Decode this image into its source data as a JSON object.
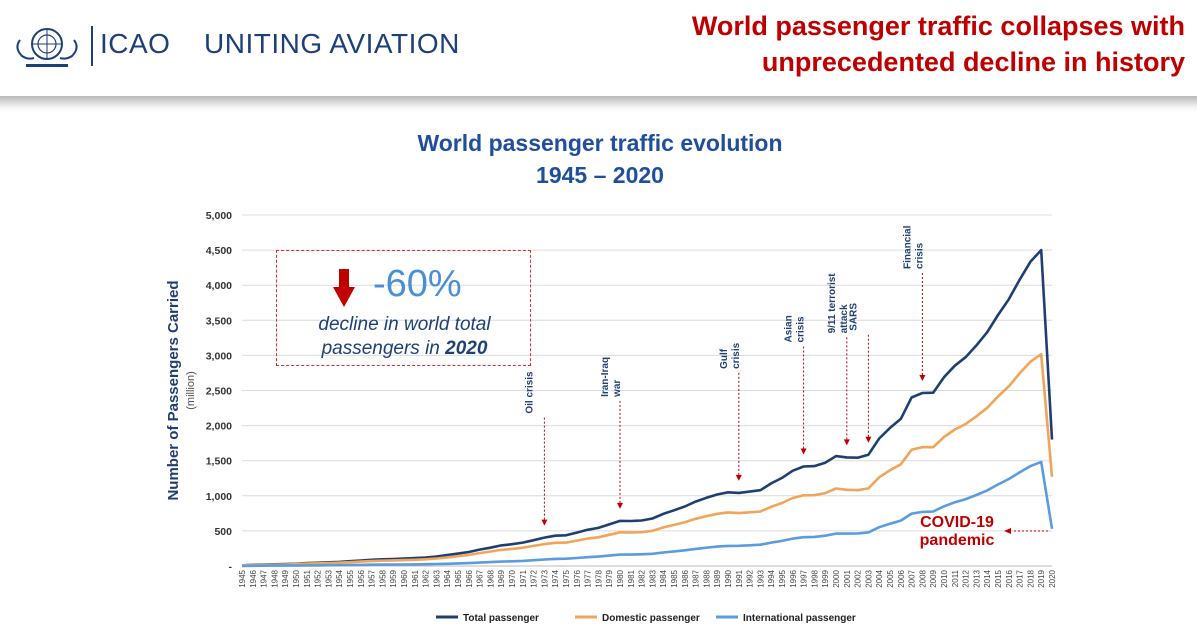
{
  "header": {
    "brand_name": "ICAO",
    "brand_tagline": "UNITING AVIATION",
    "headline_line1": "World passenger traffic collapses with",
    "headline_line2": "unprecedented decline in history"
  },
  "icons": {
    "logo": "icao-emblem-logo",
    "callout": "down-arrow-icon",
    "covid": "left-arrow-icon",
    "events": "down-arrow-icon"
  },
  "callout": {
    "percent": "-60%",
    "text_line1": "decline in world total",
    "text_line2": "passengers in ",
    "text_year": "2020"
  },
  "covid": {
    "line1": "COVID-19",
    "line2": "pandemic"
  },
  "colors": {
    "total": "#1f3f73",
    "domestic": "#f0a55a",
    "international": "#5b9be0",
    "accent": "#c00000",
    "title": "#1f4e9c"
  },
  "chart_data": {
    "type": "line",
    "title": "World passenger traffic evolution",
    "subtitle": "1945 – 2020",
    "ylabel": "Number of Passengers Carried",
    "ylabel_unit": "(million)",
    "xlabel": "",
    "ylim": [
      0,
      5000
    ],
    "yticks": [
      0,
      500,
      1000,
      1500,
      2000,
      2500,
      3000,
      3500,
      4000,
      4500,
      5000
    ],
    "ytick_labels": [
      "-",
      "500",
      "1,000",
      "1,500",
      "2,000",
      "2,500",
      "3,000",
      "3,500",
      "4,000",
      "4,500",
      "5,000"
    ],
    "x": [
      1945,
      1946,
      1947,
      1948,
      1949,
      1950,
      1951,
      1952,
      1953,
      1954,
      1955,
      1956,
      1957,
      1958,
      1959,
      1960,
      1961,
      1962,
      1963,
      1964,
      1965,
      1966,
      1967,
      1968,
      1969,
      1970,
      1971,
      1972,
      1973,
      1974,
      1975,
      1976,
      1977,
      1978,
      1979,
      1980,
      1981,
      1982,
      1983,
      1984,
      1985,
      1986,
      1987,
      1988,
      1989,
      1990,
      1991,
      1992,
      1993,
      1994,
      1995,
      1996,
      1997,
      1998,
      1999,
      2000,
      2001,
      2002,
      2003,
      2004,
      2005,
      2006,
      2007,
      2008,
      2009,
      2010,
      2011,
      2012,
      2013,
      2014,
      2015,
      2016,
      2017,
      2018,
      2019,
      2020
    ],
    "grid": "horizontal",
    "legend_position": "bottom",
    "series": [
      {
        "name": "Total passenger",
        "values": [
          9,
          18,
          21,
          24,
          27,
          31,
          42,
          46,
          52,
          59,
          68,
          78,
          88,
          96,
          100,
          106,
          112,
          121,
          135,
          155,
          177,
          200,
          233,
          261,
          293,
          311,
          333,
          368,
          404,
          432,
          437,
          476,
          516,
          543,
          592,
          642,
          641,
          648,
          676,
          742,
          793,
          848,
          917,
          971,
          1019,
          1050,
          1041,
          1060,
          1080,
          1176,
          1255,
          1358,
          1417,
          1423,
          1471,
          1566,
          1547,
          1543,
          1585,
          1816,
          1967,
          2096,
          2402,
          2465,
          2469,
          2689,
          2853,
          2974,
          3143,
          3331,
          3575,
          3799,
          4077,
          4333,
          4500,
          1800
        ]
      },
      {
        "name": "Domestic passenger",
        "values": [
          8,
          15,
          17,
          19,
          22,
          25,
          34,
          37,
          41,
          47,
          54,
          62,
          70,
          76,
          80,
          84,
          89,
          96,
          107,
          123,
          140,
          158,
          184,
          206,
          230,
          244,
          260,
          286,
          312,
          331,
          333,
          362,
          391,
          409,
          444,
          480,
          478,
          482,
          502,
          549,
          585,
          624,
          673,
          710,
          743,
          764,
          753,
          765,
          776,
          843,
          897,
          968,
          1007,
          1008,
          1039,
          1104,
          1086,
          1080,
          1106,
          1263,
          1364,
          1449,
          1655,
          1694,
          1692,
          1838,
          1945,
          2022,
          2132,
          2254,
          2414,
          2560,
          2744,
          2910,
          3017,
          1270
        ]
      },
      {
        "name": "International passenger",
        "values": [
          1,
          3,
          4,
          5,
          5,
          6,
          8,
          9,
          11,
          12,
          14,
          16,
          18,
          20,
          20,
          22,
          23,
          25,
          28,
          32,
          37,
          42,
          49,
          55,
          63,
          67,
          73,
          82,
          92,
          101,
          104,
          114,
          125,
          134,
          148,
          162,
          163,
          166,
          174,
          193,
          208,
          224,
          244,
          261,
          276,
          286,
          288,
          295,
          304,
          333,
          358,
          390,
          410,
          415,
          432,
          462,
          461,
          463,
          479,
          553,
          603,
          647,
          747,
          771,
          777,
          851,
          908,
          952,
          1011,
          1077,
          1161,
          1239,
          1333,
          1423,
          1483,
          530
        ]
      }
    ],
    "annotations": [
      {
        "label": "Oil crisis",
        "year": 1973
      },
      {
        "label": "Iran-Iraq war",
        "year": 1980
      },
      {
        "label": "Gulf crisis",
        "year": 1991
      },
      {
        "label": "Asian crisis",
        "year": 1997
      },
      {
        "label": "9/11 terrorist attack",
        "year": 2001
      },
      {
        "label": "SARS",
        "year": 2003
      },
      {
        "label": "Financial crisis",
        "year": 2008
      }
    ]
  }
}
